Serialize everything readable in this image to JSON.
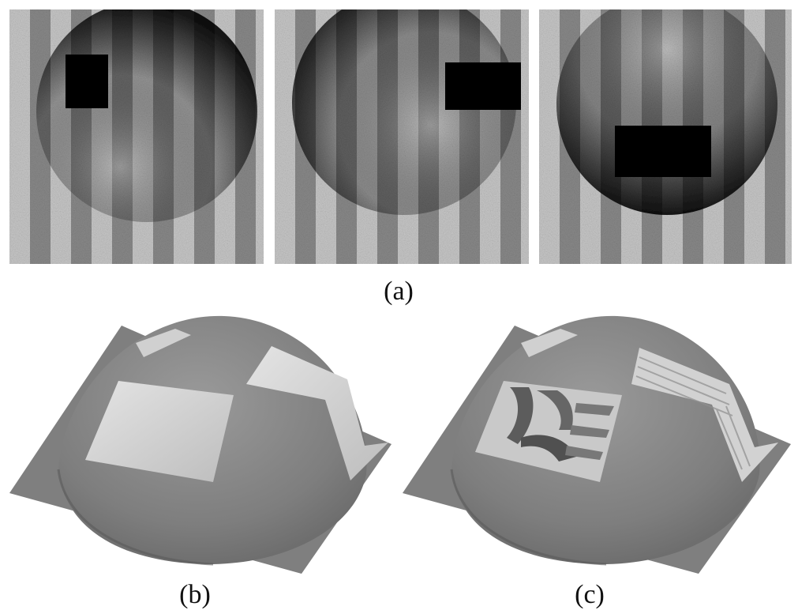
{
  "figure": {
    "row_a": {
      "label": "(a)",
      "images": [
        {
          "occluder": "left-top"
        },
        {
          "occluder": "right"
        },
        {
          "occluder": "bottom"
        }
      ]
    },
    "row_bc": {
      "left": {
        "label": "(b)"
      },
      "right": {
        "label": "(c)"
      }
    }
  },
  "colors": {
    "stripe_light": "#c8c8c8",
    "stripe_dark": "#7a7a7a",
    "occluder": "#000000",
    "surface": "#8a8a8a",
    "patch": "#d6d6d6"
  }
}
